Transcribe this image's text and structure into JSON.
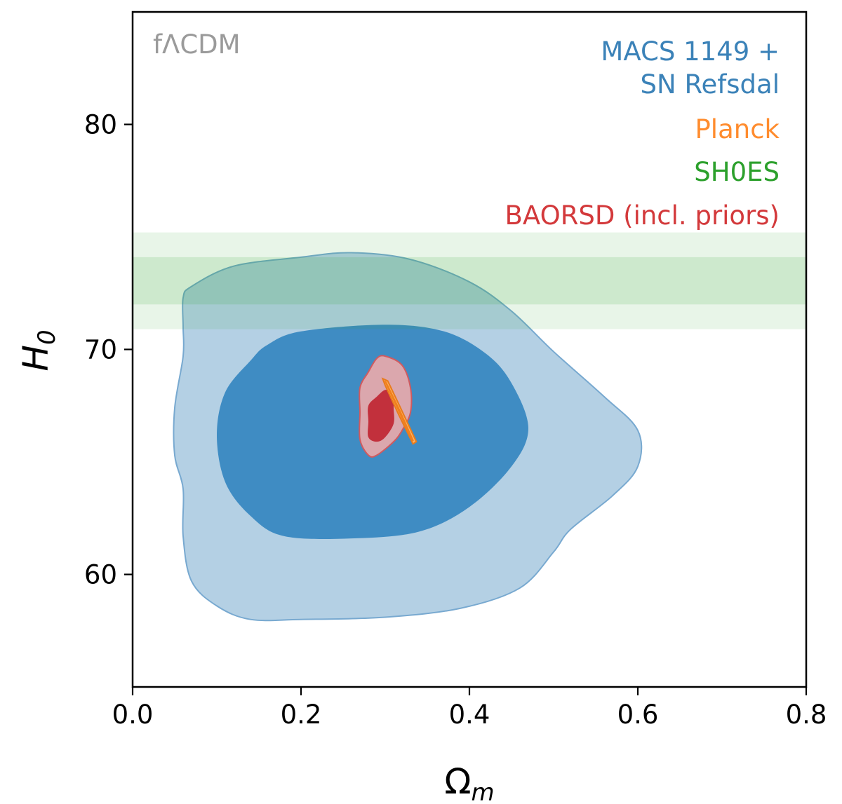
{
  "chart_data": {
    "type": "contour",
    "tag": "fΛCDM",
    "xlabel": "Ω",
    "xlabel_sub": "m",
    "ylabel": "H",
    "ylabel_sub": "0",
    "xlim": [
      0.0,
      0.8
    ],
    "ylim": [
      55,
      85
    ],
    "xticks": [
      "0.0",
      "0.2",
      "0.4",
      "0.6",
      "0.8"
    ],
    "xtick_values": [
      0.0,
      0.2,
      0.4,
      0.6,
      0.8
    ],
    "yticks": [
      "60",
      "70",
      "80"
    ],
    "ytick_values": [
      60,
      70,
      80
    ],
    "grid": false,
    "legend_position": "top-right",
    "legend": [
      {
        "label": "MACS 1149 +",
        "color": "#3b82b8"
      },
      {
        "label": "SN Refsdal",
        "color": "#3b82b8"
      },
      {
        "label": "Planck",
        "color": "#ff8c2e"
      },
      {
        "label": "SH0ES",
        "color": "#2ca02c"
      },
      {
        "label": "BAORSD (incl. priors)",
        "color": "#d3393b"
      }
    ],
    "series": [
      {
        "name": "MACS 1149 + SN Refsdal",
        "color": "#3b82b8",
        "contour_outer": [
          [
            0.07,
            72.8
          ],
          [
            0.12,
            73.7
          ],
          [
            0.2,
            74.1
          ],
          [
            0.26,
            74.3
          ],
          [
            0.33,
            74.0
          ],
          [
            0.4,
            73.0
          ],
          [
            0.45,
            71.7
          ],
          [
            0.5,
            69.9
          ],
          [
            0.56,
            67.9
          ],
          [
            0.6,
            66.4
          ],
          [
            0.6,
            64.8
          ],
          [
            0.57,
            63.5
          ],
          [
            0.52,
            62.0
          ],
          [
            0.5,
            61.0
          ],
          [
            0.46,
            59.4
          ],
          [
            0.39,
            58.5
          ],
          [
            0.3,
            58.1
          ],
          [
            0.2,
            58.0
          ],
          [
            0.14,
            58.0
          ],
          [
            0.1,
            58.6
          ],
          [
            0.07,
            59.7
          ],
          [
            0.06,
            61.7
          ],
          [
            0.06,
            63.8
          ],
          [
            0.05,
            65.3
          ],
          [
            0.05,
            67.4
          ],
          [
            0.06,
            69.7
          ],
          [
            0.06,
            71.0
          ],
          [
            0.06,
            72.3
          ]
        ],
        "contour_inner": [
          [
            0.2,
            70.8
          ],
          [
            0.3,
            71.1
          ],
          [
            0.37,
            70.8
          ],
          [
            0.42,
            69.8
          ],
          [
            0.45,
            68.5
          ],
          [
            0.47,
            66.5
          ],
          [
            0.45,
            64.8
          ],
          [
            0.4,
            63.0
          ],
          [
            0.34,
            61.9
          ],
          [
            0.26,
            61.6
          ],
          [
            0.18,
            61.7
          ],
          [
            0.14,
            62.6
          ],
          [
            0.11,
            64.1
          ],
          [
            0.1,
            66.2
          ],
          [
            0.11,
            68.1
          ],
          [
            0.14,
            69.5
          ],
          [
            0.16,
            70.2
          ]
        ]
      },
      {
        "name": "BAORSD (incl. priors)",
        "color": "#d3393b",
        "contour_outer": [
          [
            0.29,
            69.6
          ],
          [
            0.3,
            69.7
          ],
          [
            0.32,
            69.3
          ],
          [
            0.33,
            68.3
          ],
          [
            0.33,
            67.2
          ],
          [
            0.32,
            66.4
          ],
          [
            0.31,
            65.9
          ],
          [
            0.29,
            65.3
          ],
          [
            0.28,
            65.3
          ],
          [
            0.27,
            66.0
          ],
          [
            0.27,
            67.2
          ],
          [
            0.27,
            68.3
          ],
          [
            0.28,
            69.0
          ]
        ],
        "contour_inner": [
          [
            0.3,
            68.2
          ],
          [
            0.31,
            68.1
          ],
          [
            0.31,
            67.4
          ],
          [
            0.31,
            66.7
          ],
          [
            0.3,
            66.1
          ],
          [
            0.29,
            65.9
          ],
          [
            0.28,
            66.1
          ],
          [
            0.28,
            66.8
          ],
          [
            0.28,
            67.5
          ],
          [
            0.29,
            67.9
          ]
        ]
      },
      {
        "name": "Planck",
        "color": "#ff8c2e",
        "contour_outer": [
          [
            0.297,
            68.7
          ],
          [
            0.303,
            68.6
          ],
          [
            0.317,
            67.5
          ],
          [
            0.337,
            65.9
          ],
          [
            0.333,
            65.8
          ],
          [
            0.316,
            67.1
          ],
          [
            0.3,
            68.4
          ]
        ],
        "contour_inner": [
          [
            0.299,
            68.6
          ],
          [
            0.301,
            68.6
          ],
          [
            0.318,
            67.3
          ],
          [
            0.334,
            65.95
          ],
          [
            0.332,
            65.9
          ],
          [
            0.316,
            67.2
          ],
          [
            0.3,
            68.5
          ]
        ]
      },
      {
        "name": "SH0ES",
        "color": "#2ca02c",
        "band_outer": [
          70.9,
          75.2
        ],
        "band_inner": [
          72.0,
          74.1
        ]
      }
    ]
  }
}
